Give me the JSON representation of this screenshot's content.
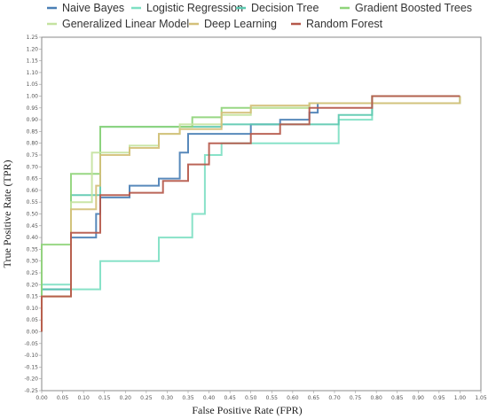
{
  "chart_data": {
    "type": "line",
    "title": "",
    "xlabel": "False Positive Rate (FPR)",
    "ylabel": "True Positive Rate (TPR)",
    "xlim": [
      0,
      1.05
    ],
    "ylim": [
      -0.25,
      1.25
    ],
    "x_ticks": [
      "0.00",
      "0.05",
      "0.10",
      "0.15",
      "0.20",
      "0.25",
      "0.30",
      "0.35",
      "0.40",
      "0.45",
      "0.50",
      "0.55",
      "0.60",
      "0.65",
      "0.70",
      "0.75",
      "0.80",
      "0.85",
      "0.90",
      "0.95",
      "1.00",
      "1.05"
    ],
    "y_ticks": [
      "-0.25",
      "-0.20",
      "-0.15",
      "-0.10",
      "-0.05",
      "0.00",
      "0.05",
      "0.10",
      "0.15",
      "0.20",
      "0.25",
      "0.30",
      "0.35",
      "0.40",
      "0.45",
      "0.50",
      "0.55",
      "0.60",
      "0.65",
      "0.70",
      "0.75",
      "0.80",
      "0.85",
      "0.90",
      "0.95",
      "1.00",
      "1.05",
      "1.10",
      "1.15",
      "1.20",
      "1.25"
    ],
    "grid": false,
    "legend_position": "top",
    "series": [
      {
        "name": "Naive Bayes",
        "color": "#4a7fb5",
        "points": [
          [
            0,
            0
          ],
          [
            0,
            0.18
          ],
          [
            0.07,
            0.18
          ],
          [
            0.07,
            0.4
          ],
          [
            0.13,
            0.4
          ],
          [
            0.13,
            0.5
          ],
          [
            0.14,
            0.5
          ],
          [
            0.14,
            0.57
          ],
          [
            0.21,
            0.57
          ],
          [
            0.21,
            0.62
          ],
          [
            0.28,
            0.62
          ],
          [
            0.28,
            0.65
          ],
          [
            0.33,
            0.65
          ],
          [
            0.33,
            0.76
          ],
          [
            0.35,
            0.76
          ],
          [
            0.35,
            0.84
          ],
          [
            0.5,
            0.84
          ],
          [
            0.5,
            0.88
          ],
          [
            0.57,
            0.88
          ],
          [
            0.57,
            0.9
          ],
          [
            0.64,
            0.9
          ],
          [
            0.64,
            0.93
          ],
          [
            0.66,
            0.93
          ],
          [
            0.66,
            0.97
          ],
          [
            0.79,
            0.97
          ],
          [
            1.0,
            0.97
          ],
          [
            1.0,
            1.0
          ]
        ]
      },
      {
        "name": "Logistic Regression",
        "color": "#7ee0c3",
        "points": [
          [
            0,
            0
          ],
          [
            0,
            0.2
          ],
          [
            0.07,
            0.2
          ],
          [
            0.07,
            0.18
          ],
          [
            0.14,
            0.18
          ],
          [
            0.14,
            0.3
          ],
          [
            0.28,
            0.3
          ],
          [
            0.28,
            0.4
          ],
          [
            0.36,
            0.4
          ],
          [
            0.36,
            0.5
          ],
          [
            0.39,
            0.5
          ],
          [
            0.39,
            0.75
          ],
          [
            0.43,
            0.75
          ],
          [
            0.43,
            0.8
          ],
          [
            0.71,
            0.8
          ],
          [
            0.71,
            0.9
          ],
          [
            0.79,
            0.9
          ],
          [
            0.79,
            0.97
          ],
          [
            1.0,
            0.97
          ],
          [
            1.0,
            1.0
          ]
        ]
      },
      {
        "name": "Decision Tree",
        "color": "#5cc9b0",
        "points": [
          [
            0,
            0
          ],
          [
            0,
            0.18
          ],
          [
            0.07,
            0.18
          ],
          [
            0.07,
            0.58
          ],
          [
            0.14,
            0.58
          ],
          [
            0.14,
            0.87
          ],
          [
            0.43,
            0.87
          ],
          [
            0.43,
            0.88
          ],
          [
            0.71,
            0.88
          ],
          [
            0.71,
            0.92
          ],
          [
            0.79,
            0.92
          ],
          [
            0.79,
            1.0
          ],
          [
            1.0,
            1.0
          ]
        ]
      },
      {
        "name": "Gradient Boosted Trees",
        "color": "#8fd47a",
        "points": [
          [
            0,
            0
          ],
          [
            0,
            0.37
          ],
          [
            0.07,
            0.37
          ],
          [
            0.07,
            0.67
          ],
          [
            0.14,
            0.67
          ],
          [
            0.14,
            0.87
          ],
          [
            0.36,
            0.87
          ],
          [
            0.36,
            0.91
          ],
          [
            0.43,
            0.91
          ],
          [
            0.43,
            0.95
          ],
          [
            0.64,
            0.95
          ],
          [
            0.64,
            0.97
          ],
          [
            0.79,
            0.97
          ],
          [
            0.79,
            1.0
          ],
          [
            1.0,
            1.0
          ]
        ]
      },
      {
        "name": "Generalized Linear Model",
        "color": "#c5e3a0",
        "points": [
          [
            0,
            0
          ],
          [
            0,
            0.15
          ],
          [
            0.07,
            0.15
          ],
          [
            0.07,
            0.55
          ],
          [
            0.12,
            0.55
          ],
          [
            0.12,
            0.76
          ],
          [
            0.21,
            0.76
          ],
          [
            0.21,
            0.79
          ],
          [
            0.28,
            0.79
          ],
          [
            0.28,
            0.84
          ],
          [
            0.33,
            0.84
          ],
          [
            0.33,
            0.88
          ],
          [
            0.43,
            0.88
          ],
          [
            0.43,
            0.92
          ],
          [
            0.5,
            0.92
          ],
          [
            0.5,
            0.95
          ],
          [
            0.64,
            0.95
          ],
          [
            0.64,
            0.97
          ],
          [
            1.0,
            0.97
          ],
          [
            1.0,
            1.0
          ]
        ]
      },
      {
        "name": "Deep Learning",
        "color": "#d4c07a",
        "points": [
          [
            0,
            0
          ],
          [
            0,
            0.15
          ],
          [
            0.07,
            0.15
          ],
          [
            0.07,
            0.52
          ],
          [
            0.13,
            0.52
          ],
          [
            0.13,
            0.62
          ],
          [
            0.14,
            0.62
          ],
          [
            0.14,
            0.75
          ],
          [
            0.21,
            0.75
          ],
          [
            0.21,
            0.78
          ],
          [
            0.28,
            0.78
          ],
          [
            0.28,
            0.84
          ],
          [
            0.33,
            0.84
          ],
          [
            0.33,
            0.86
          ],
          [
            0.43,
            0.86
          ],
          [
            0.43,
            0.93
          ],
          [
            0.5,
            0.93
          ],
          [
            0.5,
            0.96
          ],
          [
            0.64,
            0.96
          ],
          [
            0.64,
            0.97
          ],
          [
            1.0,
            0.97
          ],
          [
            1.0,
            1.0
          ]
        ]
      },
      {
        "name": "Random Forest",
        "color": "#b5584a",
        "points": [
          [
            0,
            0
          ],
          [
            0,
            0.15
          ],
          [
            0.07,
            0.15
          ],
          [
            0.07,
            0.42
          ],
          [
            0.14,
            0.42
          ],
          [
            0.14,
            0.58
          ],
          [
            0.21,
            0.58
          ],
          [
            0.21,
            0.59
          ],
          [
            0.29,
            0.59
          ],
          [
            0.29,
            0.64
          ],
          [
            0.35,
            0.64
          ],
          [
            0.35,
            0.71
          ],
          [
            0.4,
            0.71
          ],
          [
            0.4,
            0.8
          ],
          [
            0.5,
            0.8
          ],
          [
            0.5,
            0.84
          ],
          [
            0.57,
            0.84
          ],
          [
            0.57,
            0.88
          ],
          [
            0.64,
            0.88
          ],
          [
            0.64,
            0.95
          ],
          [
            0.79,
            0.95
          ],
          [
            0.79,
            1.0
          ],
          [
            1.0,
            1.0
          ]
        ]
      }
    ]
  }
}
